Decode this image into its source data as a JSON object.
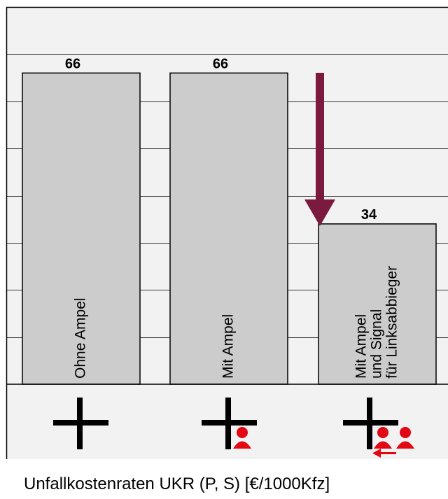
{
  "chart_data": {
    "type": "bar",
    "categories": [
      "Ohne Ampel",
      "Mit Ampel",
      "Mit Ampel und Signal für Linksabbieger"
    ],
    "category_label_lines": [
      [
        "Ohne Ampel"
      ],
      [
        "Mit Ampel"
      ],
      [
        "Mit Ampel",
        "und Signal",
        "für Linksabbieger"
      ]
    ],
    "values": [
      66,
      66,
      34
    ],
    "data_labels": [
      "66",
      "66",
      "34"
    ],
    "xlabel": "Unfallkostenraten UKR (P, S) [€/1000Kfz]",
    "ylabel": "",
    "ylim": [
      0,
      80
    ],
    "grid": true,
    "icons": [
      "intersection-cross-icon",
      "intersection-pedestrian-signal-icon",
      "intersection-left-turn-signal-icon"
    ],
    "highlight_arrow": {
      "points_to": "Mit Ampel und Signal für Linksabbieger"
    },
    "colors": {
      "bar": "#cccccc",
      "plot_background": "#f2f2f2",
      "arrow": "#7b1a3f",
      "pedestrian": "#e30613",
      "gridline": "#333333"
    }
  }
}
